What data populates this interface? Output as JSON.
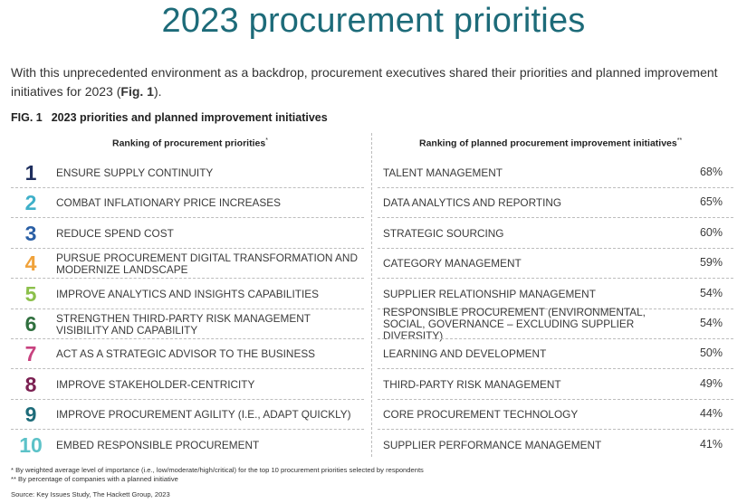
{
  "title": "2023 procurement priorities",
  "intro": {
    "text": "With this unprecedented environment as a backdrop, procurement executives shared their priorities and planned improvement initiatives for 2023 (",
    "ref": "Fig. 1",
    "end": ")."
  },
  "figure": {
    "number": "FIG. 1",
    "caption": "2023 priorities and planned improvement initiatives"
  },
  "chart_data": {
    "type": "table",
    "left_header": "Ranking of procurement priorities",
    "left_marker": "*",
    "right_header": "Ranking of planned procurement improvement initiatives",
    "right_marker": "**",
    "priorities": [
      {
        "rank": "1",
        "label": "ENSURE SUPPLY CONTINUITY",
        "color": "#1f2f5e"
      },
      {
        "rank": "2",
        "label": "COMBAT INFLATIONARY PRICE INCREASES",
        "color": "#3fb0c9"
      },
      {
        "rank": "3",
        "label": "REDUCE SPEND COST",
        "color": "#2a5fa5"
      },
      {
        "rank": "4",
        "label": "PURSUE PROCUREMENT DIGITAL TRANSFORMATION AND MODERNIZE LANDSCAPE",
        "color": "#f0a23a"
      },
      {
        "rank": "5",
        "label": "IMPROVE ANALYTICS AND INSIGHTS CAPABILITIES",
        "color": "#8cc04b"
      },
      {
        "rank": "6",
        "label": "STRENGTHEN THIRD-PARTY RISK MANAGEMENT VISIBILITY AND CAPABILITY",
        "color": "#2f6f3e"
      },
      {
        "rank": "7",
        "label": "ACT AS A STRATEGIC ADVISOR TO THE BUSINESS",
        "color": "#c8427f"
      },
      {
        "rank": "8",
        "label": "IMPROVE STAKEHOLDER-CENTRICITY",
        "color": "#7b2052"
      },
      {
        "rank": "9",
        "label": "IMPROVE PROCUREMENT AGILITY (I.E., ADAPT QUICKLY)",
        "color": "#1d6b79"
      },
      {
        "rank": "10",
        "label": "EMBED RESPONSIBLE PROCUREMENT",
        "color": "#5cc2c8"
      }
    ],
    "initiatives": [
      {
        "label": "TALENT MANAGEMENT",
        "value": 68,
        "display": "68%"
      },
      {
        "label": "DATA ANALYTICS AND REPORTING",
        "value": 65,
        "display": "65%"
      },
      {
        "label": "STRATEGIC SOURCING",
        "value": 60,
        "display": "60%"
      },
      {
        "label": "CATEGORY MANAGEMENT",
        "value": 59,
        "display": "59%"
      },
      {
        "label": "SUPPLIER RELATIONSHIP MANAGEMENT",
        "value": 54,
        "display": "54%"
      },
      {
        "label": "RESPONSIBLE PROCUREMENT (ENVIRONMENTAL, SOCIAL, GOVERNANCE – EXCLUDING SUPPLIER DIVERSITY)",
        "value": 54,
        "display": "54%"
      },
      {
        "label": "LEARNING AND DEVELOPMENT",
        "value": 50,
        "display": "50%"
      },
      {
        "label": "THIRD-PARTY RISK MANAGEMENT",
        "value": 49,
        "display": "49%"
      },
      {
        "label": "CORE PROCUREMENT TECHNOLOGY",
        "value": 44,
        "display": "44%"
      },
      {
        "label": "SUPPLIER PERFORMANCE MANAGEMENT",
        "value": 41,
        "display": "41%"
      }
    ]
  },
  "footnotes": {
    "note1": "* By weighted average level of importance (i.e., low/moderate/high/critical) for the top 10 procurement priorities selected by respondents",
    "note2": "** By percentage of companies with a planned initiative",
    "source": "Source: Key Issues Study, The Hackett Group, 2023"
  }
}
